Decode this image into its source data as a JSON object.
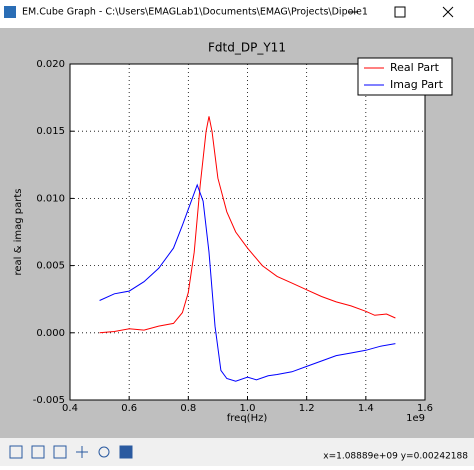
{
  "window": {
    "title": "EM.Cube Graph - C:\\Users\\EMAGLab1\\Documents\\EMAG\\Projects\\Dipole1",
    "status": "x=1.08889e+09  y=0.00242188"
  },
  "chart_data": {
    "type": "line",
    "title": "Fdtd_DP_Y11",
    "x_label": "freq(Hz)",
    "y_label": "real & imag parts",
    "x_offset_label": "1e9",
    "xlim": [
      0.4,
      1.6
    ],
    "xticks": [
      0.4,
      0.6,
      0.8,
      {
        "value": 1,
        "label": "1.0"
      },
      1.2,
      1.4,
      1.6
    ],
    "ylim": [
      -0.005,
      0.02
    ],
    "yticks": [
      -0.005,
      {
        "value": 0,
        "label": "0.000"
      },
      0.005,
      {
        "value": 0.01,
        "label": "0.010"
      },
      0.015,
      {
        "value": 0.02,
        "label": "0.020"
      }
    ],
    "grid": true,
    "legend": "upper right",
    "series": [
      {
        "name": "Real Part",
        "color": "#ff0000",
        "x": [
          0.5,
          0.55,
          0.6,
          0.65,
          0.7,
          0.75,
          0.78,
          0.8,
          0.82,
          0.84,
          0.86,
          0.87,
          0.88,
          0.9,
          0.93,
          0.96,
          1.0,
          1.05,
          1.1,
          1.15,
          1.2,
          1.25,
          1.3,
          1.35,
          1.4,
          1.43,
          1.47,
          1.5
        ],
        "values": [
          0.0,
          0.0001,
          0.0003,
          0.0002,
          0.0005,
          0.0007,
          0.0015,
          0.003,
          0.006,
          0.011,
          0.015,
          0.0161,
          0.015,
          0.0115,
          0.009,
          0.0075,
          0.0063,
          0.005,
          0.0042,
          0.0037,
          0.0032,
          0.0027,
          0.0023,
          0.002,
          0.0016,
          0.0013,
          0.0014,
          0.0011
        ]
      },
      {
        "name": "Imag Part",
        "color": "#0000ff",
        "x": [
          0.5,
          0.55,
          0.6,
          0.65,
          0.7,
          0.75,
          0.78,
          0.81,
          0.83,
          0.85,
          0.87,
          0.89,
          0.91,
          0.93,
          0.96,
          1.0,
          1.03,
          1.07,
          1.1,
          1.15,
          1.2,
          1.25,
          1.3,
          1.35,
          1.4,
          1.45,
          1.5
        ],
        "values": [
          0.0024,
          0.0029,
          0.0031,
          0.0038,
          0.0048,
          0.0063,
          0.008,
          0.0098,
          0.011,
          0.0098,
          0.006,
          0.0005,
          -0.0028,
          -0.0034,
          -0.0036,
          -0.0033,
          -0.0035,
          -0.0032,
          -0.0031,
          -0.0029,
          -0.0025,
          -0.0021,
          -0.0017,
          -0.0015,
          -0.0013,
          -0.001,
          -0.0008
        ]
      }
    ]
  }
}
